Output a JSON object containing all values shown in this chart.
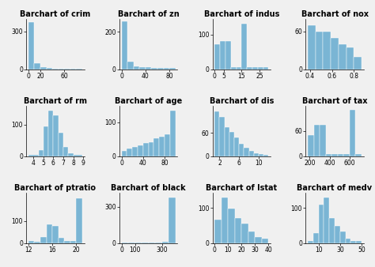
{
  "title_fontsize": 7,
  "tick_fontsize": 5.5,
  "bar_color": "#7ab5d4",
  "bar_edgecolor": "#7ab5d4",
  "background_color": "#f0f0f0",
  "subplots": [
    {
      "title": "Barchart of crim",
      "bins": [
        0,
        10,
        20,
        30,
        40,
        50,
        60,
        70,
        80,
        90
      ],
      "counts": [
        370,
        50,
        15,
        8,
        5,
        3,
        3,
        2,
        2
      ],
      "xticks": [
        0,
        20,
        60
      ],
      "yticks": [
        0,
        300
      ],
      "ylim": [
        0,
        400
      ]
    },
    {
      "title": "Barchart of zn",
      "bins": [
        0,
        10,
        20,
        30,
        40,
        50,
        60,
        70,
        80,
        90
      ],
      "counts": [
        255,
        40,
        15,
        12,
        10,
        8,
        5,
        5,
        5
      ],
      "xticks": [
        0,
        40,
        80
      ],
      "yticks": [
        0,
        200
      ],
      "ylim": [
        0,
        270
      ]
    },
    {
      "title": "Barchart of indus",
      "bins": [
        0,
        3,
        6,
        9,
        12,
        15,
        18,
        21,
        24,
        27,
        30
      ],
      "counts": [
        72,
        80,
        80,
        5,
        5,
        130,
        5,
        5,
        5,
        5
      ],
      "xticks": [
        0,
        5,
        15,
        25
      ],
      "yticks": [
        0,
        100
      ],
      "ylim": [
        0,
        145
      ]
    },
    {
      "title": "Barchart of nox",
      "bins": [
        0.38,
        0.45,
        0.52,
        0.59,
        0.66,
        0.73,
        0.8,
        0.87
      ],
      "counts": [
        70,
        60,
        60,
        50,
        40,
        35,
        20
      ],
      "xticks": [
        0.4,
        0.6,
        0.8
      ],
      "yticks": [
        0,
        60
      ],
      "ylim": [
        0,
        80
      ]
    },
    {
      "title": "Barchart of rm",
      "bins": [
        3.5,
        4.5,
        5.0,
        5.5,
        6.0,
        6.5,
        7.0,
        7.5,
        8.0,
        8.9
      ],
      "counts": [
        5,
        20,
        95,
        145,
        130,
        75,
        30,
        8,
        5
      ],
      "xticks": [
        4,
        5,
        6,
        7,
        8,
        9
      ],
      "yticks": [
        0,
        100
      ],
      "ylim": [
        0,
        160
      ]
    },
    {
      "title": "Barchart of age",
      "bins": [
        0,
        10,
        20,
        30,
        40,
        50,
        60,
        70,
        80,
        90,
        100
      ],
      "counts": [
        15,
        22,
        28,
        32,
        38,
        42,
        52,
        58,
        65,
        135
      ],
      "xticks": [
        0,
        40,
        80
      ],
      "yticks": [
        0,
        100
      ],
      "ylim": [
        0,
        150
      ]
    },
    {
      "title": "Barchart of dis",
      "bins": [
        1,
        2,
        3,
        4,
        5,
        6,
        7,
        8,
        9,
        10,
        11,
        12
      ],
      "counts": [
        115,
        100,
        75,
        62,
        48,
        32,
        22,
        14,
        8,
        5,
        3
      ],
      "xticks": [
        2,
        6,
        10
      ],
      "yticks": [
        0,
        60
      ],
      "ylim": [
        0,
        130
      ]
    },
    {
      "title": "Barchart of tax",
      "bins": [
        180,
        240,
        300,
        360,
        420,
        480,
        540,
        600,
        660,
        720
      ],
      "counts": [
        50,
        75,
        75,
        5,
        5,
        5,
        5,
        110,
        5
      ],
      "xticks": [
        200,
        400,
        600
      ],
      "yticks": [
        0,
        60
      ],
      "ylim": [
        0,
        120
      ]
    },
    {
      "title": "Barchart of ptratio",
      "bins": [
        12,
        13,
        14,
        15,
        16,
        17,
        18,
        19,
        20,
        21
      ],
      "counts": [
        8,
        5,
        28,
        85,
        78,
        22,
        8,
        8,
        205
      ],
      "xticks": [
        12,
        16,
        20
      ],
      "yticks": [
        0,
        100
      ],
      "ylim": [
        0,
        230
      ]
    },
    {
      "title": "Barchart of black",
      "bins": [
        0,
        50,
        100,
        150,
        200,
        250,
        300,
        350,
        400
      ],
      "counts": [
        5,
        3,
        3,
        3,
        5,
        5,
        8,
        378
      ],
      "xticks": [
        0,
        100,
        300
      ],
      "yticks": [
        0,
        300
      ],
      "ylim": [
        0,
        420
      ]
    },
    {
      "title": "Barchart of lstat",
      "bins": [
        0,
        5,
        10,
        15,
        20,
        25,
        30,
        35,
        40
      ],
      "counts": [
        68,
        130,
        98,
        72,
        55,
        32,
        18,
        12
      ],
      "xticks": [
        0,
        10,
        20,
        30,
        40
      ],
      "yticks": [
        0,
        100
      ],
      "ylim": [
        0,
        145
      ]
    },
    {
      "title": "Barchart of medv",
      "bins": [
        0,
        5,
        10,
        15,
        20,
        25,
        30,
        35,
        40,
        45,
        50
      ],
      "counts": [
        5,
        28,
        110,
        130,
        72,
        48,
        32,
        12,
        5,
        5
      ],
      "xticks": [
        10,
        30,
        50
      ],
      "yticks": [
        0,
        100
      ],
      "ylim": [
        0,
        145
      ]
    }
  ]
}
